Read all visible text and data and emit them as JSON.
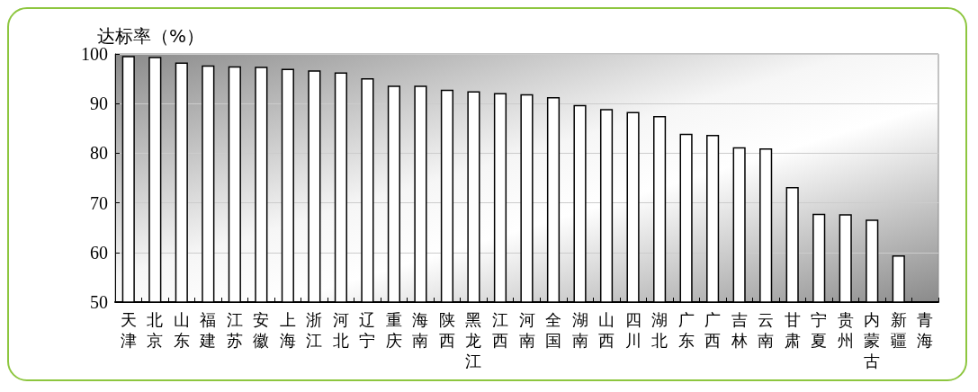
{
  "chart_data": {
    "type": "bar",
    "ylabel": "达标率（%）",
    "categories": [
      "天津",
      "北京",
      "山东",
      "福建",
      "江苏",
      "安徽",
      "上海",
      "浙江",
      "河北",
      "辽宁",
      "重庆",
      "海南",
      "陕西",
      "黑龙江",
      "江西",
      "河南",
      "全国",
      "湖南",
      "山西",
      "四川",
      "湖北",
      "广东",
      "广西",
      "吉林",
      "云南",
      "甘肃",
      "宁夏",
      "贵州",
      "内蒙古",
      "新疆",
      "青海"
    ],
    "values": [
      99.6,
      99.4,
      98.3,
      97.7,
      97.5,
      97.4,
      97.0,
      96.7,
      96.3,
      95.1,
      93.6,
      93.6,
      92.8,
      92.5,
      92.1,
      91.9,
      91.3,
      89.7,
      88.9,
      88.3,
      87.5,
      83.9,
      83.7,
      81.2,
      81.0,
      73.2,
      67.8,
      67.7,
      66.6,
      59.4,
      null
    ],
    "color": "#ffffff",
    "ylim": [
      50,
      100
    ],
    "yticks": [
      50,
      60,
      70,
      80,
      90,
      100
    ],
    "grid": "y"
  }
}
